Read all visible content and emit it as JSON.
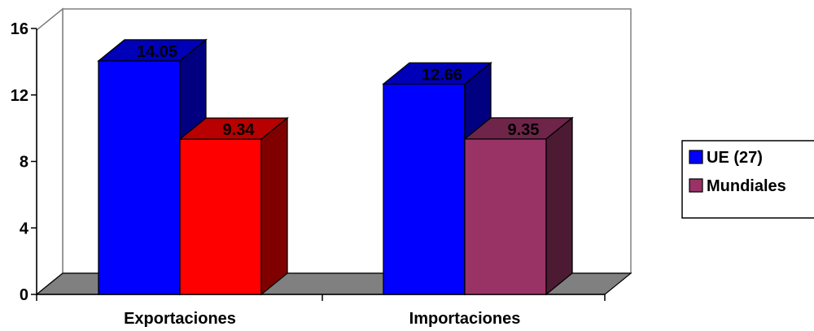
{
  "chart_data": {
    "type": "bar",
    "style": "3d-clustered",
    "categories": [
      "Exportaciones",
      "Importaciones"
    ],
    "series": [
      {
        "name": "UE (27)",
        "values": [
          14.05,
          12.66
        ],
        "colors": [
          "#0000FF",
          "#0000FF"
        ]
      },
      {
        "name": "Mundiales",
        "values": [
          9.34,
          9.35
        ],
        "colors": [
          "#FF0000",
          "#993366"
        ]
      }
    ],
    "ylim": [
      0,
      16
    ],
    "yticks": [
      0,
      4,
      8,
      12,
      16
    ],
    "data_labels": [
      "14.05",
      "12.66",
      "9.34",
      "9.35"
    ],
    "legend": {
      "position": "right",
      "items": [
        "UE (27)",
        "Mundiales"
      ],
      "colors": [
        "#0000FF",
        "#993366"
      ]
    },
    "grid": false,
    "wall_color": "#FFFFFF",
    "floor_color": "#808080"
  }
}
